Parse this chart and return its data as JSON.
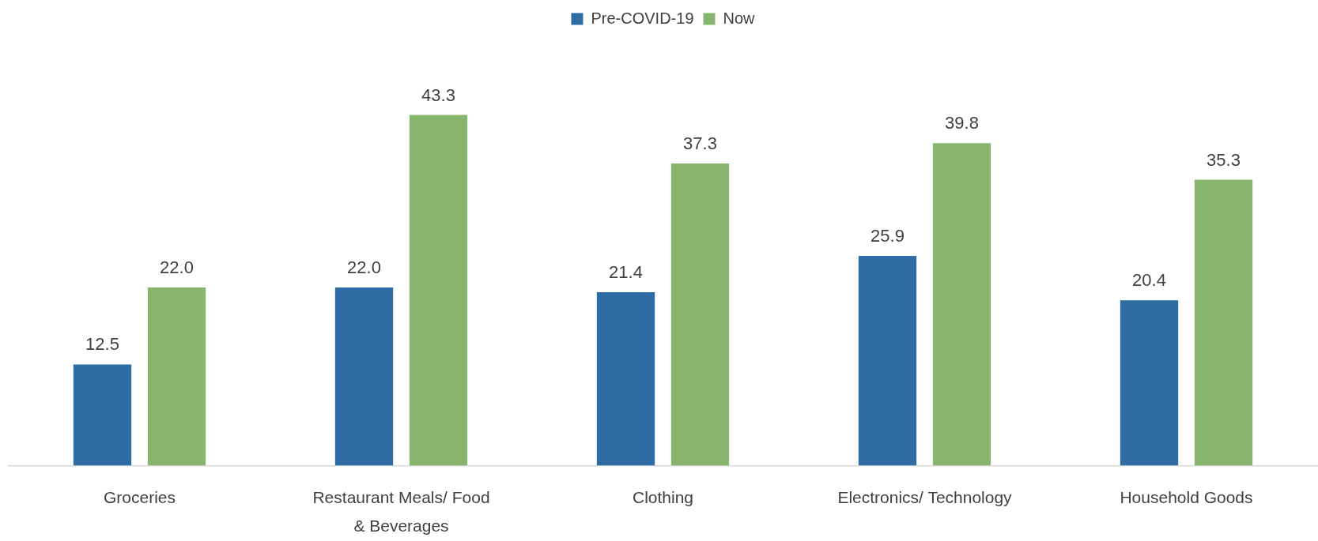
{
  "chart_data": {
    "type": "bar",
    "categories": [
      "Groceries",
      "Restaurant Meals/ Food & Beverages",
      "Clothing",
      "Electronics/ Technology",
      "Household Goods"
    ],
    "series": [
      {
        "name": "Pre-COVID-19",
        "color": "#2e6ca4",
        "values": [
          12.5,
          22.0,
          21.4,
          25.9,
          20.4
        ],
        "value_labels": [
          "12.5",
          "22.0",
          "21.4",
          "25.9",
          "20.4"
        ]
      },
      {
        "name": "Now",
        "color": "#87b56d",
        "values": [
          22.0,
          43.3,
          37.3,
          39.8,
          35.3
        ],
        "value_labels": [
          "22.0",
          "43.3",
          "37.3",
          "39.8",
          "35.3"
        ]
      }
    ],
    "legend": "top",
    "grid": false
  }
}
